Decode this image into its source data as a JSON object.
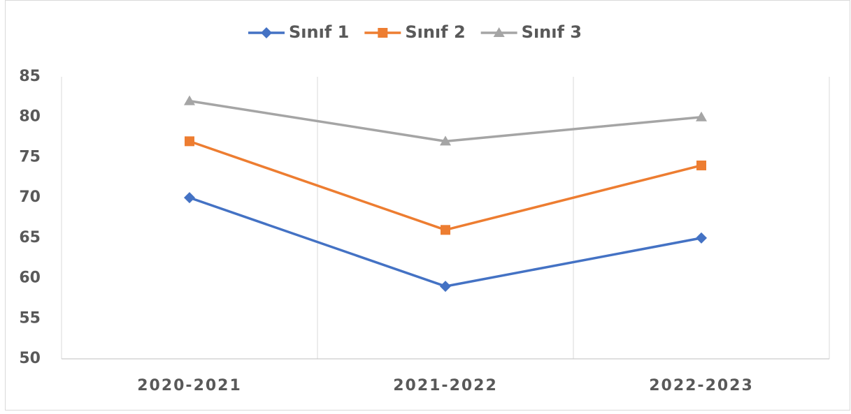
{
  "chart_data": {
    "type": "line",
    "categories": [
      "2020-2021",
      "2021-2022",
      "2022-2023"
    ],
    "series": [
      {
        "name": "Sınıf 1",
        "color": "#4472c4",
        "marker": "diamond",
        "values": [
          70,
          59,
          65
        ]
      },
      {
        "name": "Sınıf 2",
        "color": "#ed7d31",
        "marker": "square",
        "values": [
          77,
          66,
          74
        ]
      },
      {
        "name": "Sınıf 3",
        "color": "#a5a5a5",
        "marker": "triangle",
        "values": [
          82,
          77,
          80
        ]
      }
    ],
    "ylim": [
      50,
      85
    ],
    "yticks": [
      50,
      55,
      60,
      65,
      70,
      75,
      80,
      85
    ],
    "grid": true,
    "legend": "top"
  }
}
